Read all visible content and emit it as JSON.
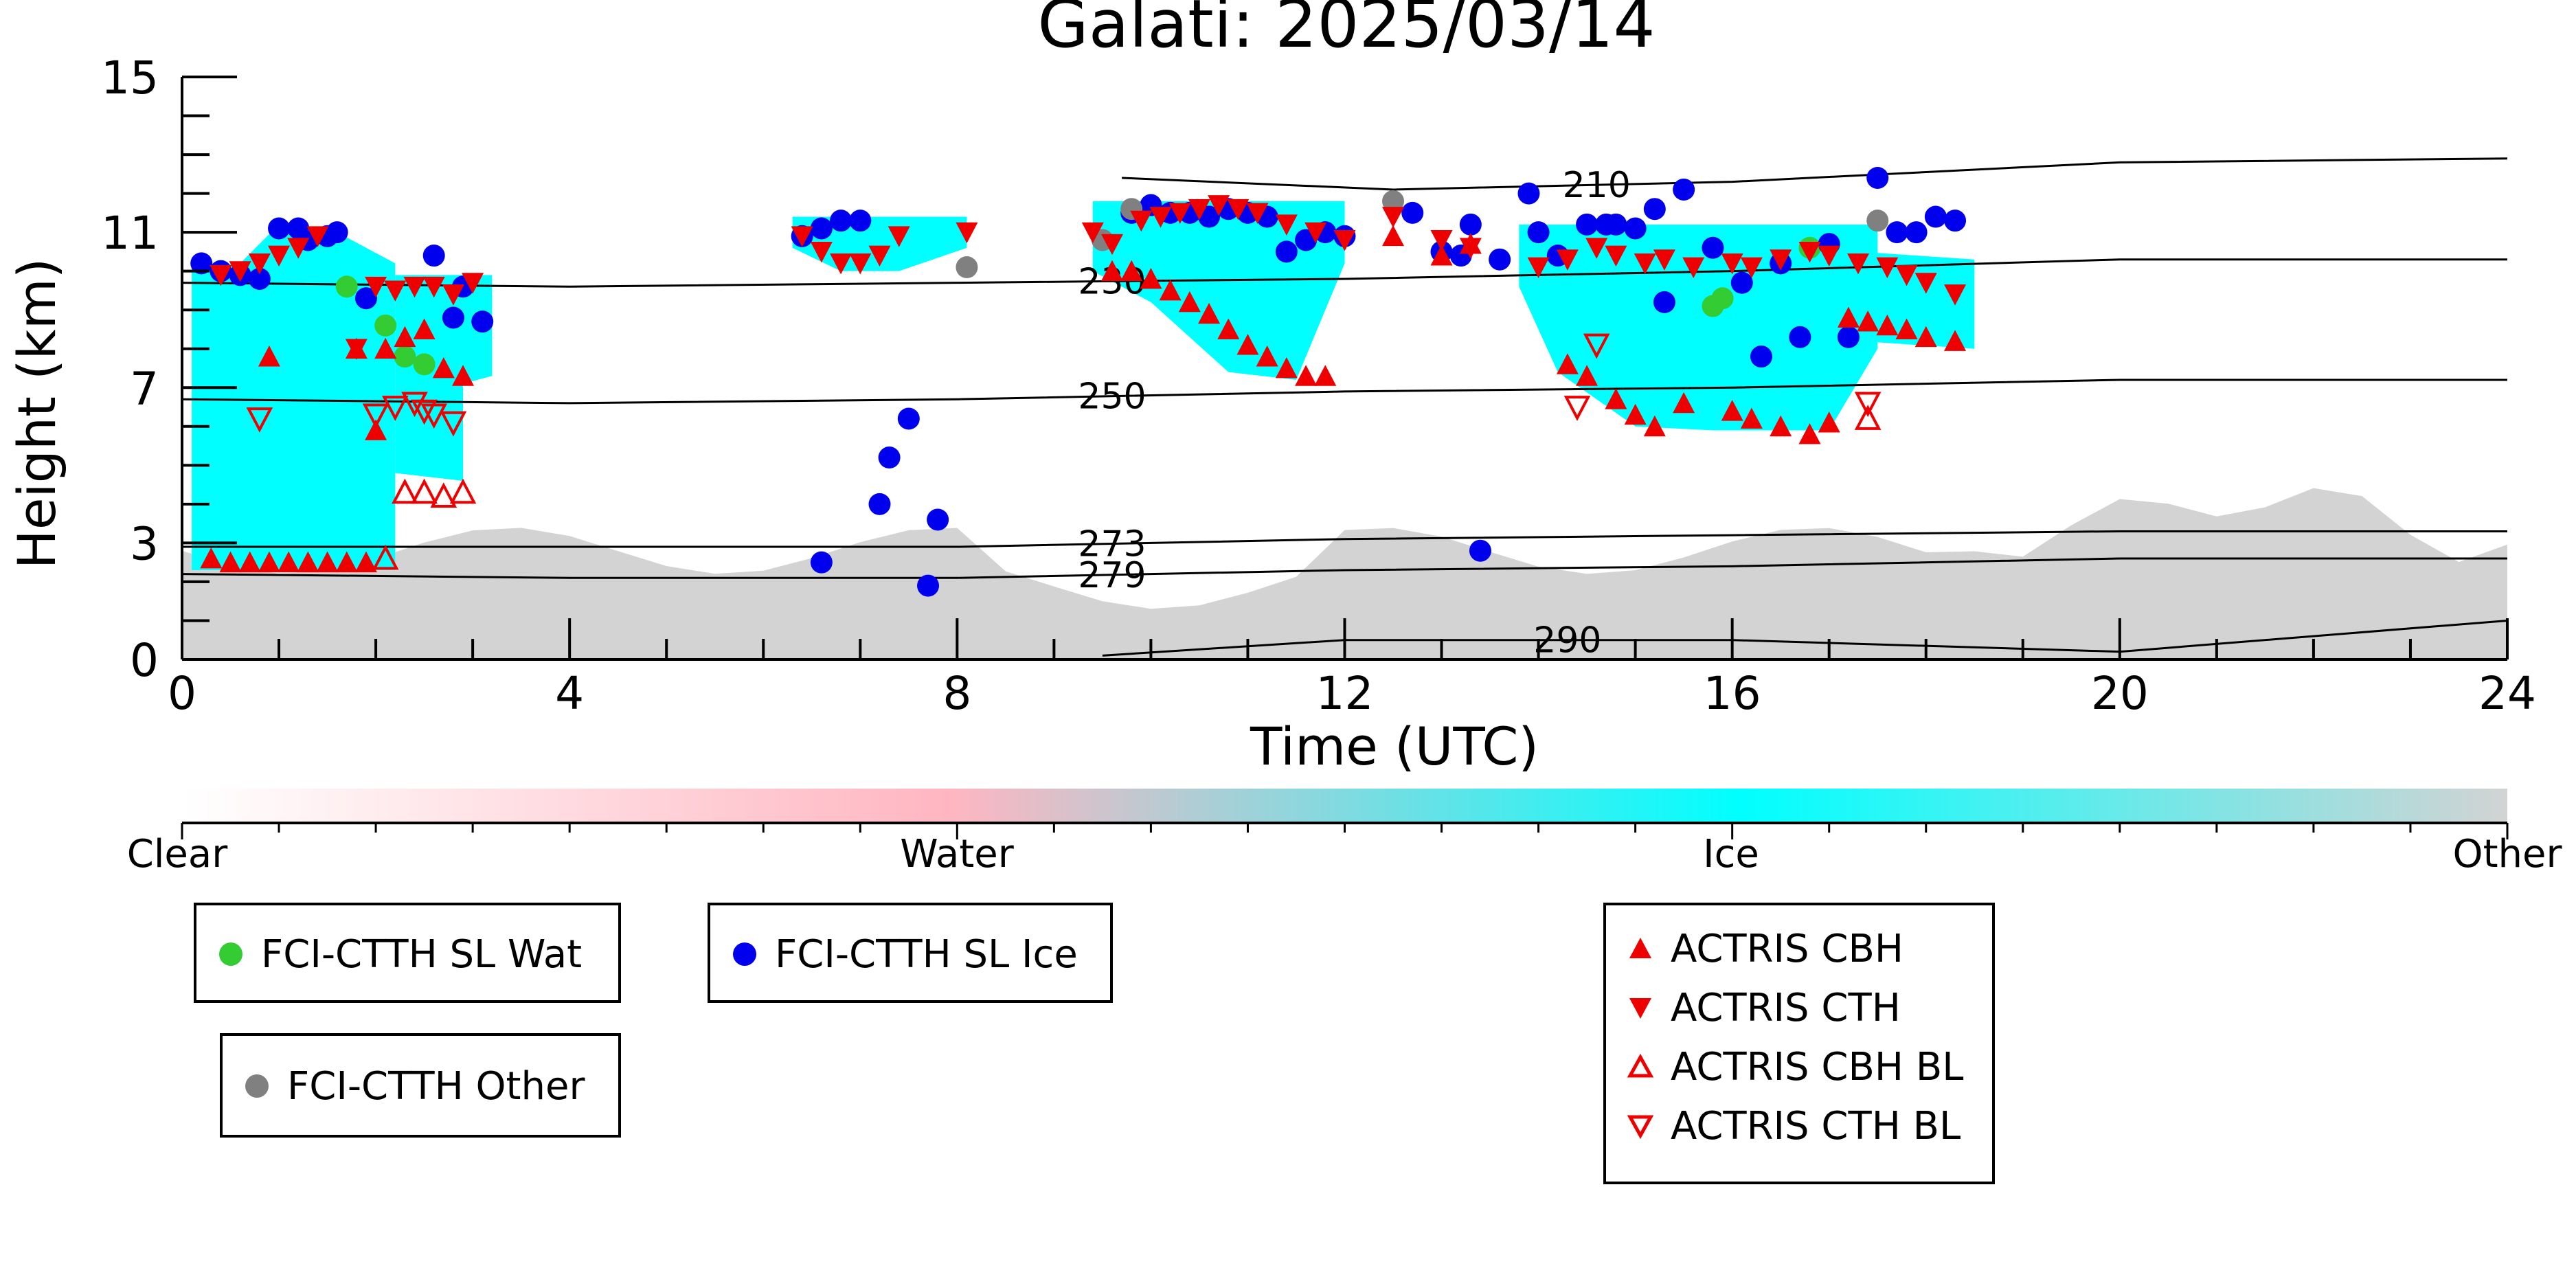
{
  "chart_data": {
    "type": "scatter",
    "title": "Galati: 2025/03/14",
    "xlabel": "Time (UTC)",
    "ylabel": "Height (km)",
    "xlim": [
      0,
      24
    ],
    "ylim": [
      0,
      15
    ],
    "x_ticks": [
      0,
      4,
      8,
      12,
      16,
      20,
      24
    ],
    "y_ticks": [
      0,
      3,
      7,
      11,
      15
    ],
    "grid": false,
    "colorbar": {
      "labels": [
        "Clear",
        "Water",
        "Ice",
        "Other"
      ],
      "colors": [
        "#ffffff",
        "#ffb6c1",
        "#00ffff",
        "#d3d3d3"
      ]
    },
    "background_classes": [
      {
        "class": "Other",
        "description": "boundary layer",
        "x_start": 0,
        "x_end": 24
      },
      {
        "class": "Ice",
        "description": "cloud",
        "segments": [
          [
            0.1,
            2.2
          ],
          [
            6.3,
            8.1
          ],
          [
            9.4,
            12.0
          ],
          [
            13.8,
            17.5
          ],
          [
            17.3,
            18.5
          ]
        ]
      }
    ],
    "isotherms": [
      {
        "label": "210",
        "x": [
          9.7,
          12.5,
          16,
          20,
          24
        ],
        "y": [
          12.4,
          12.1,
          12.3,
          12.8,
          12.9
        ]
      },
      {
        "label": "230",
        "x": [
          0,
          4,
          8,
          12,
          16,
          20,
          24
        ],
        "y": [
          9.7,
          9.6,
          9.7,
          9.8,
          10.0,
          10.3,
          10.3
        ]
      },
      {
        "label": "250",
        "x": [
          0,
          4,
          8,
          12,
          16,
          20,
          24
        ],
        "y": [
          6.7,
          6.6,
          6.7,
          6.9,
          7.0,
          7.2,
          7.2
        ]
      },
      {
        "label": "273",
        "x": [
          0,
          4,
          8,
          12,
          16,
          20,
          24
        ],
        "y": [
          2.9,
          2.9,
          2.9,
          3.1,
          3.2,
          3.3,
          3.3
        ]
      },
      {
        "label": "279",
        "x": [
          0,
          4,
          8,
          12,
          16,
          20,
          24
        ],
        "y": [
          2.2,
          2.1,
          2.1,
          2.3,
          2.4,
          2.6,
          2.6
        ]
      },
      {
        "label": "290",
        "x": [
          9.5,
          12,
          16,
          20,
          24
        ],
        "y": [
          0.1,
          0.5,
          0.5,
          0.2,
          1.0
        ]
      }
    ],
    "series": [
      {
        "name": "FCI-CTTH SL Wat",
        "color": "#33cc33",
        "marker": "circle",
        "x": [
          1.7,
          2.1,
          2.3,
          2.5,
          15.8,
          15.9,
          16.8
        ],
        "y": [
          9.6,
          8.6,
          7.8,
          7.6,
          9.1,
          9.3,
          10.6
        ]
      },
      {
        "name": "FCI-CTTH SL Ice",
        "color": "#0000ee",
        "marker": "circle",
        "x": [
          0.2,
          0.4,
          0.6,
          0.8,
          1.0,
          1.2,
          1.3,
          1.5,
          1.6,
          1.9,
          2.6,
          2.8,
          2.9,
          3.1,
          6.4,
          6.6,
          6.8,
          7.0,
          7.2,
          7.3,
          7.5,
          7.8,
          7.7,
          9.8,
          10.0,
          10.2,
          10.4,
          10.6,
          10.8,
          11.0,
          11.2,
          11.4,
          11.6,
          11.8,
          12.0,
          12.7,
          13.0,
          13.2,
          13.3,
          13.6,
          13.9,
          14.0,
          14.2,
          14.5,
          14.7,
          14.8,
          15.0,
          15.2,
          15.3,
          15.5,
          15.8,
          16.1,
          16.3,
          16.5,
          16.7,
          17.0,
          17.2,
          17.5,
          17.7,
          17.9,
          18.1,
          18.3,
          6.6,
          13.4
        ],
        "y": [
          10.2,
          10.0,
          9.9,
          9.8,
          11.1,
          11.1,
          10.8,
          10.9,
          11.0,
          9.3,
          10.4,
          8.8,
          9.6,
          8.7,
          10.9,
          11.1,
          11.3,
          11.3,
          4.0,
          5.2,
          6.2,
          3.6,
          1.9,
          11.5,
          11.7,
          11.5,
          11.5,
          11.4,
          11.6,
          11.5,
          11.4,
          10.5,
          10.8,
          11.0,
          10.9,
          11.5,
          10.5,
          10.4,
          11.2,
          10.3,
          12.0,
          11.0,
          10.4,
          11.2,
          11.2,
          11.2,
          11.1,
          11.6,
          9.2,
          12.1,
          10.6,
          9.7,
          7.8,
          10.2,
          8.3,
          10.7,
          8.3,
          12.4,
          11.0,
          11.0,
          11.4,
          11.3,
          2.5,
          2.8
        ]
      },
      {
        "name": "FCI-CTTH Other",
        "color": "#808080",
        "marker": "circle",
        "x": [
          8.1,
          9.5,
          9.8,
          12.5,
          17.5
        ],
        "y": [
          10.1,
          10.8,
          11.6,
          11.8,
          11.3
        ]
      },
      {
        "name": "ACTRIS CBH",
        "color": "#ee0000",
        "marker": "triangle-up",
        "x": [
          0.3,
          0.5,
          0.7,
          0.9,
          1.1,
          1.3,
          1.5,
          1.7,
          1.9,
          2.1,
          2.3,
          2.5,
          2.7,
          2.9,
          0.9,
          1.8,
          2.0,
          9.6,
          9.8,
          10.0,
          10.2,
          10.4,
          10.6,
          10.8,
          11.0,
          11.2,
          11.4,
          11.6,
          11.8,
          12.5,
          13.0,
          13.3,
          14.3,
          14.5,
          14.8,
          15.0,
          15.2,
          15.5,
          16.0,
          16.2,
          16.5,
          16.8,
          17.0,
          17.2,
          17.4,
          17.6,
          17.8,
          18.0,
          18.3
        ],
        "y": [
          2.6,
          2.5,
          2.5,
          2.5,
          2.5,
          2.5,
          2.5,
          2.5,
          2.5,
          8.0,
          8.3,
          8.5,
          7.5,
          7.3,
          7.8,
          8.0,
          5.9,
          10.0,
          10.0,
          9.8,
          9.5,
          9.2,
          8.9,
          8.5,
          8.1,
          7.8,
          7.5,
          7.3,
          7.3,
          10.9,
          10.4,
          10.7,
          7.6,
          7.3,
          6.7,
          6.3,
          6.0,
          6.6,
          6.4,
          6.2,
          6.0,
          5.8,
          6.1,
          8.8,
          8.7,
          8.6,
          8.5,
          8.3,
          8.2
        ]
      },
      {
        "name": "ACTRIS CTH",
        "color": "#ee0000",
        "marker": "triangle-down",
        "x": [
          0.4,
          0.6,
          0.8,
          1.0,
          1.2,
          1.4,
          2.0,
          2.2,
          2.4,
          2.6,
          2.8,
          3.0,
          1.8,
          6.4,
          6.6,
          6.8,
          7.0,
          7.2,
          7.4,
          8.1,
          9.4,
          9.6,
          9.9,
          10.1,
          10.3,
          10.5,
          10.7,
          10.9,
          11.1,
          11.4,
          11.7,
          12.0,
          12.5,
          13.0,
          13.3,
          14.0,
          14.3,
          14.6,
          14.8,
          15.1,
          15.3,
          15.6,
          16.0,
          16.2,
          16.5,
          16.8,
          17.0,
          17.3,
          17.6,
          17.8,
          18.0,
          18.3
        ],
        "y": [
          9.9,
          10.0,
          10.2,
          10.4,
          10.6,
          10.9,
          9.6,
          9.5,
          9.6,
          9.6,
          9.4,
          9.7,
          8.0,
          10.9,
          10.5,
          10.2,
          10.2,
          10.4,
          10.9,
          11.0,
          11.0,
          10.7,
          11.3,
          11.4,
          11.5,
          11.6,
          11.7,
          11.6,
          11.5,
          11.2,
          11.0,
          10.8,
          11.4,
          10.8,
          10.6,
          10.1,
          10.3,
          10.6,
          10.4,
          10.2,
          10.3,
          10.1,
          10.2,
          10.1,
          10.3,
          10.5,
          10.4,
          10.2,
          10.1,
          9.9,
          9.7,
          9.4
        ]
      },
      {
        "name": "ACTRIS CBH BL",
        "color": "#ee0000",
        "marker": "triangle-up-open",
        "x": [
          2.1,
          2.3,
          2.5,
          2.7,
          2.9,
          17.4
        ],
        "y": [
          2.6,
          4.3,
          4.3,
          4.2,
          4.3,
          6.2
        ]
      },
      {
        "name": "ACTRIS CTH BL",
        "color": "#ee0000",
        "marker": "triangle-down-open",
        "x": [
          0.8,
          2.0,
          2.2,
          2.4,
          2.5,
          2.6,
          2.8,
          14.4,
          14.6,
          17.4
        ],
        "y": [
          6.2,
          6.3,
          6.5,
          6.6,
          6.4,
          6.3,
          6.1,
          6.5,
          8.1,
          6.6
        ]
      }
    ]
  }
}
